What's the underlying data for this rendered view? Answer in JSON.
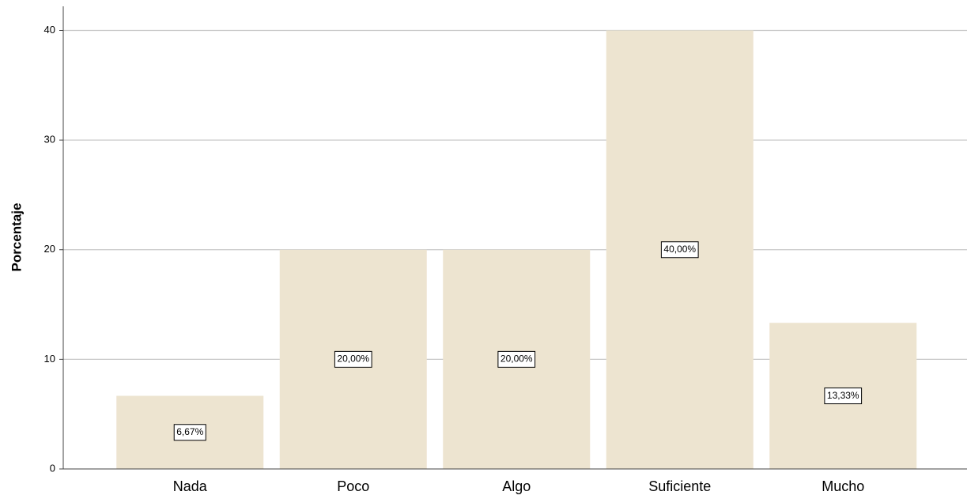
{
  "chart_data": {
    "type": "bar",
    "y_label": "Porcentaje",
    "categories": [
      "Nada",
      "Poco",
      "Algo",
      "Suficiente",
      "Mucho"
    ],
    "values": [
      6.67,
      20,
      20,
      40,
      13.33
    ],
    "value_labels": [
      "6,67%",
      "20,00%",
      "20,00%",
      "40,00%",
      "13,33%"
    ],
    "color": "#ede4d0",
    "ylim": [
      0,
      42.2
    ],
    "yticks": [
      0,
      10,
      20,
      30,
      40
    ],
    "grid": true
  }
}
